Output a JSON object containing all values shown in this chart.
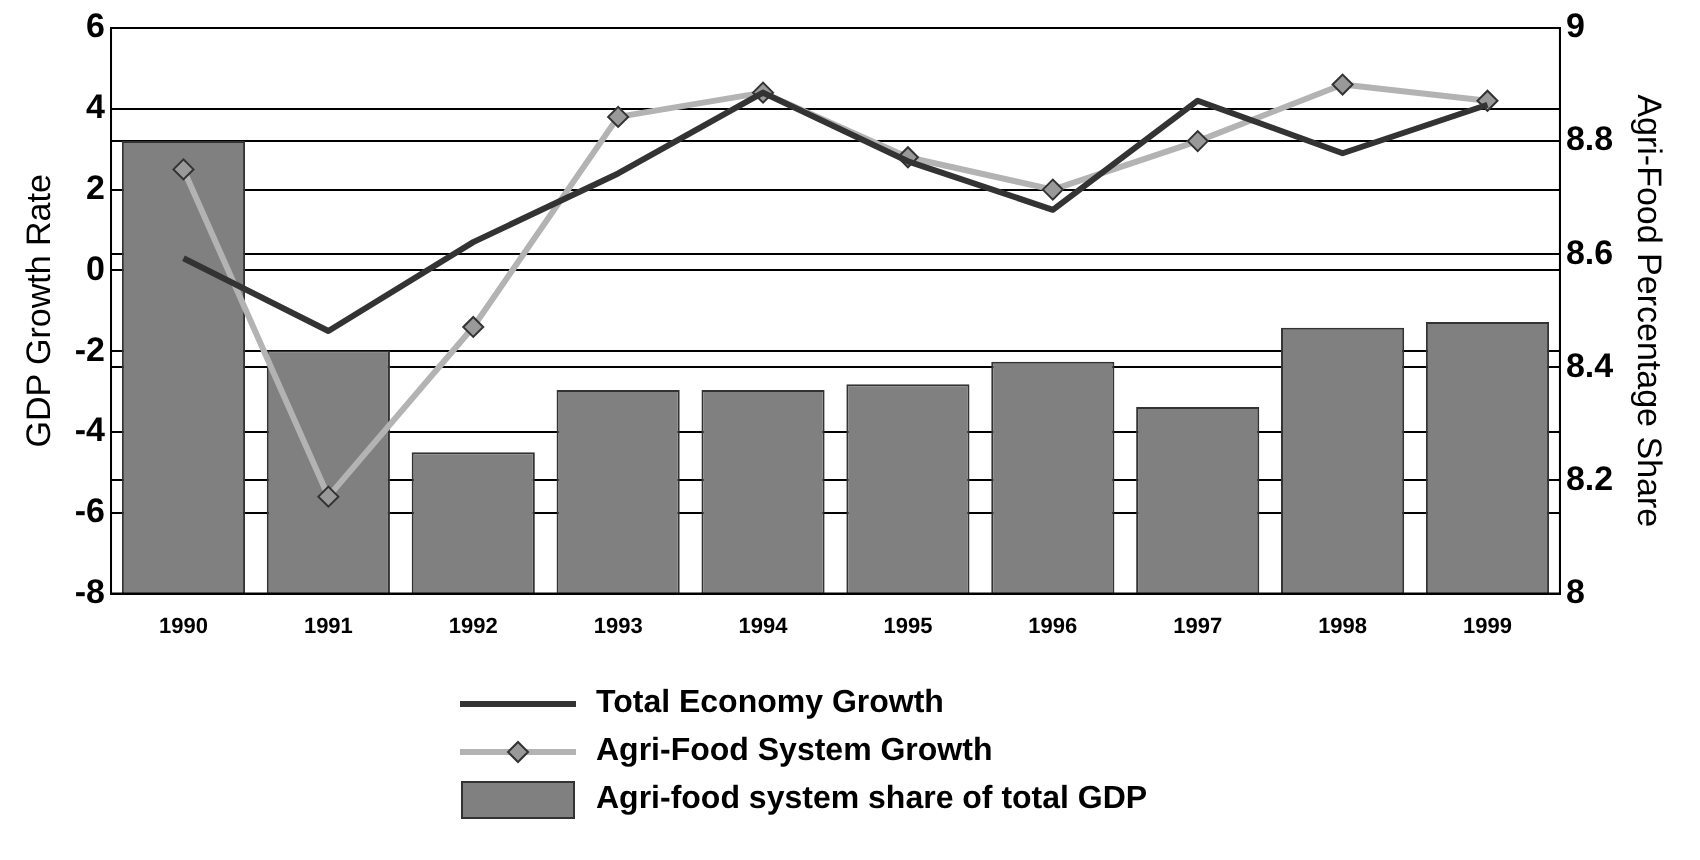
{
  "chart_data": {
    "type": "bar",
    "xlabel": null,
    "ylabel": "GDP Growth Rate",
    "y2label": "Agri-Food Percentage Share",
    "categories": [
      "1990",
      "1991",
      "1992",
      "1993",
      "1994",
      "1995",
      "1996",
      "1997",
      "1998",
      "1999"
    ],
    "series": [
      {
        "name": "Total Economy Growth",
        "type": "line",
        "color": "#333333",
        "marker": "none",
        "values": [
          0.3,
          -1.5,
          0.7,
          2.4,
          4.4,
          2.7,
          1.5,
          4.2,
          2.9,
          4.1
        ]
      },
      {
        "name": "Agri-Food System Growth",
        "type": "line",
        "color": "#b3b3b3",
        "marker": "diamond",
        "values": [
          2.5,
          -5.6,
          -1.4,
          3.8,
          4.4,
          2.8,
          2.0,
          3.2,
          4.6,
          4.2
        ]
      },
      {
        "name": "Agri-food system share of total GDP",
        "axis": "y2",
        "color": "#808080",
        "values": [
          8.8,
          8.43,
          8.25,
          8.36,
          8.36,
          8.37,
          8.41,
          8.33,
          8.47,
          8.48
        ]
      }
    ],
    "ylim": [
      -8,
      6
    ],
    "yticks": [
      -8,
      -6,
      -4,
      -2,
      0,
      2,
      4,
      6
    ],
    "y2lim": [
      8,
      9
    ],
    "y2ticks": [
      8,
      8.2,
      8.4,
      8.6,
      8.8,
      9
    ],
    "grid": "y",
    "legend": "bottom"
  }
}
